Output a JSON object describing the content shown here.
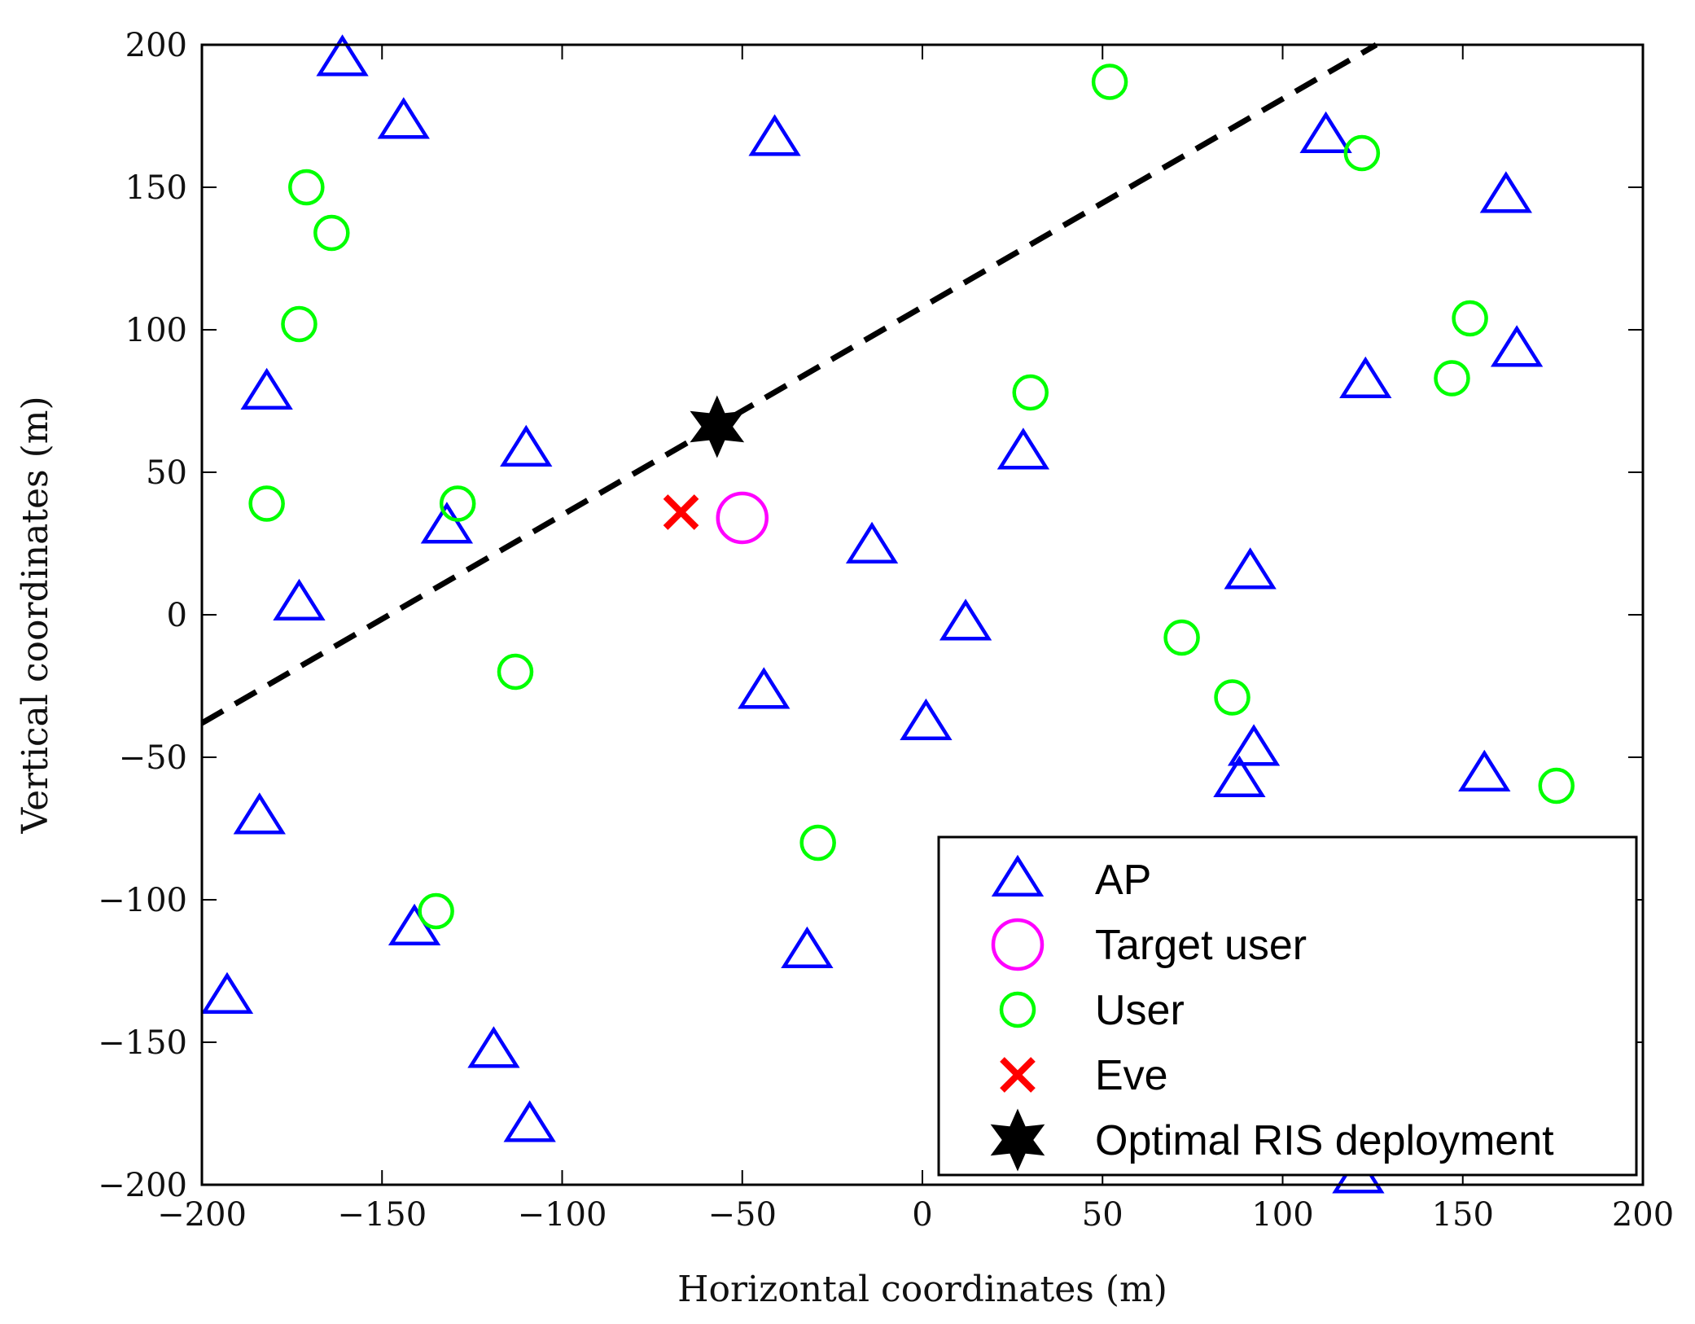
{
  "chart_data": {
    "type": "scatter",
    "title": "",
    "xlabel": "Horizontal coordinates (m)",
    "ylabel": "Vertical coordinates (m)",
    "xlim": [
      -200,
      200
    ],
    "ylim": [
      -200,
      200
    ],
    "grid": false,
    "x_ticks": [
      -200,
      -150,
      -100,
      -50,
      0,
      50,
      100,
      150,
      200
    ],
    "y_ticks": [
      -200,
      -150,
      -100,
      -50,
      0,
      50,
      100,
      150,
      200
    ],
    "x_tick_labels": [
      "−200",
      "−150",
      "−100",
      "−50",
      "0",
      "50",
      "100",
      "150",
      "200"
    ],
    "y_tick_labels": [
      "−200",
      "−150",
      "−100",
      "−50",
      "0",
      "50",
      "100",
      "150",
      "200"
    ],
    "legend_position": "bottom-right",
    "series": [
      {
        "name": "AP",
        "marker": "triangle",
        "color": "#0000ff",
        "points": [
          [
            -161,
            195
          ],
          [
            -144,
            173
          ],
          [
            -41,
            167
          ],
          [
            112,
            168
          ],
          [
            162,
            147
          ],
          [
            -182,
            78
          ],
          [
            -110,
            58
          ],
          [
            28,
            57
          ],
          [
            123,
            82
          ],
          [
            165,
            93
          ],
          [
            -132,
            31
          ],
          [
            -14,
            24
          ],
          [
            -173,
            4
          ],
          [
            91,
            15
          ],
          [
            12,
            -3
          ],
          [
            -44,
            -27
          ],
          [
            1,
            -38
          ],
          [
            92,
            -47
          ],
          [
            88,
            -58
          ],
          [
            156,
            -56
          ],
          [
            -184,
            -71
          ],
          [
            -32,
            -118
          ],
          [
            -141,
            -110
          ],
          [
            -193,
            -134
          ],
          [
            -119,
            -153
          ],
          [
            -109,
            -179
          ],
          [
            121,
            -197
          ]
        ]
      },
      {
        "name": "Target user",
        "marker": "circle-large",
        "color": "#ff00ff",
        "points": [
          [
            -50,
            34
          ]
        ]
      },
      {
        "name": "User",
        "marker": "circle",
        "color": "#00ff00",
        "points": [
          [
            52,
            187
          ],
          [
            122,
            162
          ],
          [
            -171,
            150
          ],
          [
            -164,
            134
          ],
          [
            -173,
            102
          ],
          [
            152,
            104
          ],
          [
            147,
            83
          ],
          [
            30,
            78
          ],
          [
            -182,
            39
          ],
          [
            -129,
            39
          ],
          [
            72,
            -8
          ],
          [
            86,
            -29
          ],
          [
            -113,
            -20
          ],
          [
            176,
            -60
          ],
          [
            -29,
            -80
          ],
          [
            -135,
            -104
          ]
        ]
      },
      {
        "name": "Eve",
        "marker": "x",
        "color": "#ff0000",
        "points": [
          [
            -67,
            36
          ]
        ]
      },
      {
        "name": "Optimal RIS deployment",
        "marker": "hexagram",
        "color": "#000000",
        "points": [
          [
            -57,
            66
          ]
        ]
      }
    ],
    "reference_line": {
      "style": "dashed",
      "color": "#000000",
      "points": [
        [
          -200,
          -38
        ],
        [
          126,
          200
        ]
      ]
    }
  }
}
